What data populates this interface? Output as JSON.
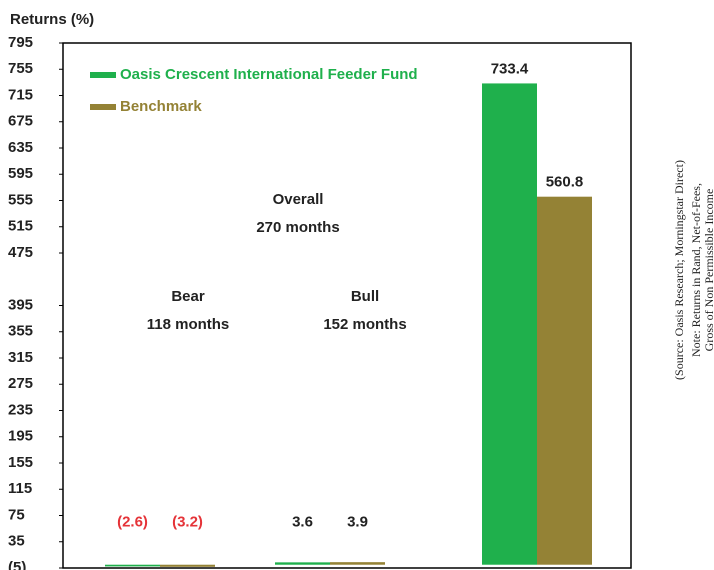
{
  "chart_data": {
    "type": "bar",
    "title": "Returns (%)",
    "categories": [
      "Bear",
      "Bull",
      "Overall"
    ],
    "category_periods": [
      "118 months",
      "152 months",
      "270 months"
    ],
    "series": [
      {
        "name": "Oasis Crescent International Feeder Fund",
        "color": "#1fb04c",
        "values": [
          -2.6,
          3.6,
          733.4
        ],
        "value_labels": [
          "(2.6)",
          "3.6",
          "733.4"
        ]
      },
      {
        "name": "Benchmark",
        "color": "#948235",
        "values": [
          -3.2,
          3.9,
          560.8
        ],
        "value_labels": [
          "(3.2)",
          "3.9",
          "560.8"
        ]
      }
    ],
    "ylim": [
      -5,
      795
    ],
    "yticks": [
      {
        "value": -5,
        "label": "(5)"
      },
      35,
      75,
      115,
      155,
      195,
      235,
      275,
      315,
      355,
      395,
      475,
      515,
      555,
      595,
      635,
      675,
      715,
      755,
      795
    ],
    "notes": [
      "(Source: Oasis Research; Morningstar Direct)",
      "Note: Returns in Rand, Net-of-Fees,",
      "Gross of Non Permissible Income"
    ]
  }
}
